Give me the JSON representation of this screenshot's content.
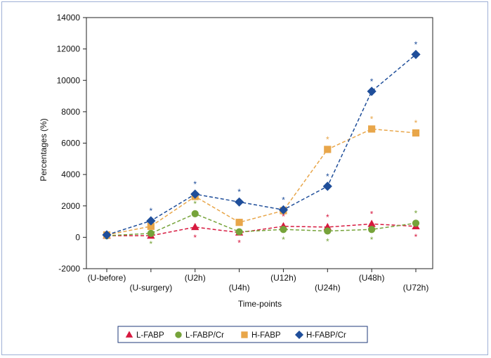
{
  "chart_data": {
    "type": "line",
    "xlabel": "Time-points",
    "ylabel": "Percentages (%)",
    "ylim": [
      -2000,
      14000
    ],
    "yticks": [
      -2000,
      0,
      2000,
      4000,
      6000,
      8000,
      10000,
      12000,
      14000
    ],
    "categories": [
      "(U-before)",
      "(U-surgery)",
      "(U2h)",
      "(U4h)",
      "(U12h)",
      "(U24h)",
      "(U48h)",
      "(U72h)"
    ],
    "legend_position": "bottom",
    "series": [
      {
        "name": "L-FABP",
        "color": "#d7193f",
        "marker": "triangle",
        "values": [
          100,
          100,
          650,
          300,
          700,
          650,
          850,
          700
        ],
        "sig_marks": [
          false,
          false,
          true,
          true,
          true,
          true,
          true,
          true
        ],
        "sig_pos": [
          null,
          null,
          "below",
          "below",
          "above",
          "above",
          "above",
          "below"
        ]
      },
      {
        "name": "L-FABP/Cr",
        "color": "#76a33a",
        "marker": "circle",
        "values": [
          100,
          250,
          1500,
          350,
          500,
          400,
          500,
          900
        ],
        "sig_marks": [
          false,
          true,
          true,
          true,
          true,
          true,
          true,
          true
        ],
        "sig_pos": [
          null,
          "below",
          "above",
          "above",
          "below",
          "below",
          "below",
          "above"
        ]
      },
      {
        "name": "H-FABP",
        "color": "#e8a64a",
        "marker": "square",
        "values": [
          150,
          700,
          2600,
          950,
          1700,
          5600,
          6900,
          6650
        ],
        "sig_marks": [
          false,
          false,
          false,
          false,
          false,
          true,
          true,
          true
        ],
        "sig_pos": [
          null,
          null,
          null,
          null,
          null,
          "above",
          "above",
          "above"
        ]
      },
      {
        "name": "H-FABP/Cr",
        "color": "#1f4e9a",
        "marker": "diamond",
        "values": [
          150,
          1050,
          2750,
          2250,
          1750,
          3250,
          9300,
          11650
        ],
        "sig_marks": [
          false,
          true,
          true,
          true,
          true,
          true,
          true,
          true
        ],
        "sig_pos": [
          null,
          "above",
          "above",
          "above",
          "above",
          "above",
          "above",
          "above"
        ]
      }
    ],
    "sig_symbol": "*"
  }
}
